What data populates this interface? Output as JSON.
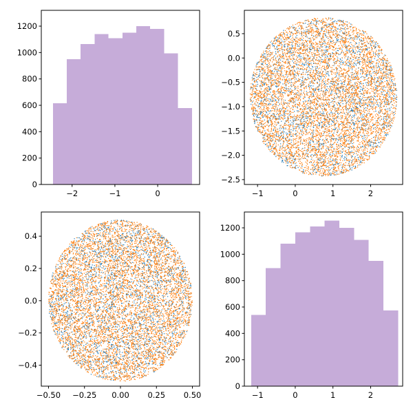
{
  "colors": {
    "histogram": "#c6acd9",
    "scatter_blue": "#1f77b4",
    "scatter_orange": "#ff7f0e"
  },
  "chart_data": [
    {
      "id": "top-left",
      "type": "histogram",
      "title": "",
      "xlabel": "",
      "ylabel": "",
      "xlim": [
        -2.72,
        0.98
      ],
      "ylim": [
        0,
        1320
      ],
      "bin_edges": [
        -2.45,
        -2.125,
        -1.8,
        -1.475,
        -1.15,
        -0.825,
        -0.5,
        -0.175,
        0.15,
        0.475,
        0.8
      ],
      "counts": [
        615,
        950,
        1065,
        1140,
        1110,
        1150,
        1200,
        1180,
        995,
        580
      ],
      "xticks": [
        -2,
        -1,
        0
      ],
      "xtick_labels": [
        "−2",
        "−1",
        "0"
      ],
      "yticks": [
        0,
        200,
        400,
        600,
        800,
        1000,
        1200
      ],
      "ytick_labels": [
        "0",
        "200",
        "400",
        "600",
        "800",
        "1000",
        "1200"
      ]
    },
    {
      "id": "top-right",
      "type": "scatter",
      "title": "",
      "xlabel": "",
      "ylabel": "",
      "xlim": [
        -1.35,
        2.85
      ],
      "ylim": [
        -2.6,
        0.98
      ],
      "xticks": [
        -1,
        0,
        1,
        2
      ],
      "xtick_labels": [
        "−1",
        "0",
        "1",
        "2"
      ],
      "yticks": [
        0.5,
        0.0,
        -0.5,
        -1.0,
        -1.5,
        -2.0,
        -2.5
      ],
      "ytick_labels": [
        "0.5",
        "0.0",
        "−0.5",
        "−1.0",
        "−1.5",
        "−2.0",
        "−2.5"
      ],
      "series": [
        {
          "name": "blue",
          "count": 2600,
          "distribution": "ellipse",
          "center": [
            0.75,
            -0.8
          ],
          "radii": [
            1.95,
            1.63
          ]
        },
        {
          "name": "orange",
          "count": 6000,
          "distribution": "ellipse",
          "center": [
            0.75,
            -0.8
          ],
          "radii": [
            1.95,
            1.63
          ]
        }
      ]
    },
    {
      "id": "bottom-left",
      "type": "scatter",
      "title": "",
      "xlabel": "",
      "ylabel": "",
      "xlim": [
        -0.55,
        0.55
      ],
      "ylim": [
        -0.53,
        0.55
      ],
      "xticks": [
        -0.5,
        -0.25,
        0.0,
        0.25,
        0.5
      ],
      "xtick_labels": [
        "−0.50",
        "−0.25",
        "0.00",
        "0.25",
        "0.50"
      ],
      "yticks": [
        0.4,
        0.2,
        0.0,
        -0.2,
        -0.4
      ],
      "ytick_labels": [
        "0.4",
        "0.2",
        "0.0",
        "−0.2",
        "−0.4"
      ],
      "series": [
        {
          "name": "blue",
          "count": 2600,
          "distribution": "ellipse",
          "center": [
            0.0,
            0.0
          ],
          "radii": [
            0.5,
            0.5
          ]
        },
        {
          "name": "orange",
          "count": 6000,
          "distribution": "ellipse",
          "center": [
            0.0,
            0.0
          ],
          "radii": [
            0.5,
            0.5
          ]
        }
      ]
    },
    {
      "id": "bottom-right",
      "type": "histogram",
      "title": "",
      "xlabel": "",
      "ylabel": "",
      "xlim": [
        -1.35,
        2.85
      ],
      "ylim": [
        0,
        1320
      ],
      "bin_edges": [
        -1.17,
        -0.78,
        -0.39,
        0.0,
        0.39,
        0.78,
        1.17,
        1.56,
        1.95,
        2.34,
        2.73
      ],
      "counts": [
        540,
        895,
        1080,
        1165,
        1210,
        1255,
        1200,
        1110,
        950,
        575
      ],
      "xticks": [
        -1,
        0,
        1,
        2
      ],
      "xtick_labels": [
        "−1",
        "0",
        "1",
        "2"
      ],
      "yticks": [
        0,
        200,
        400,
        600,
        800,
        1000,
        1200
      ],
      "ytick_labels": [
        "0",
        "200",
        "400",
        "600",
        "800",
        "1000",
        "1200"
      ]
    }
  ]
}
